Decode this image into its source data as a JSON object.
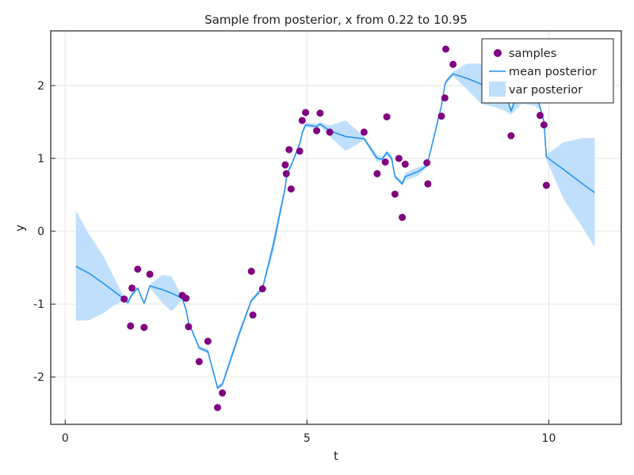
{
  "chart_data": {
    "type": "scatter",
    "title": "Sample from posterior, x from 0.22 to 10.95",
    "xlabel": "t",
    "ylabel": "y",
    "xlim": [
      -0.3,
      11.5
    ],
    "ylim": [
      -2.65,
      2.75
    ],
    "xticks": [
      0,
      5,
      10
    ],
    "xtick_labels": [
      "0",
      "5",
      "10"
    ],
    "yticks": [
      -2,
      -1,
      0,
      1,
      2
    ],
    "ytick_labels": [
      "-2",
      "-1",
      "0",
      "1",
      "2"
    ],
    "grid": true,
    "legend_position": "top-right",
    "series": [
      {
        "name": "samples",
        "kind": "scatter",
        "color": "#800080",
        "x": [
          1.22,
          1.35,
          1.38,
          1.5,
          1.63,
          1.75,
          2.42,
          2.5,
          2.55,
          2.77,
          2.95,
          3.15,
          3.25,
          3.85,
          3.88,
          4.08,
          4.55,
          4.57,
          4.63,
          4.67,
          4.85,
          4.9,
          4.97,
          5.2,
          5.27,
          5.47,
          6.18,
          6.45,
          6.62,
          6.65,
          6.82,
          6.9,
          6.97,
          7.03,
          7.48,
          7.5,
          7.78,
          7.85,
          7.87,
          8.02,
          9.22,
          9.82,
          9.9,
          9.95
        ],
        "y": [
          -0.93,
          -1.3,
          -0.78,
          -0.52,
          -1.32,
          -0.59,
          -0.88,
          -0.92,
          -1.31,
          -1.79,
          -1.51,
          -2.42,
          -2.22,
          -0.55,
          -1.15,
          -0.79,
          0.91,
          0.79,
          1.12,
          0.58,
          1.1,
          1.52,
          1.63,
          1.38,
          1.62,
          1.36,
          1.36,
          0.79,
          0.95,
          1.57,
          0.51,
          1.0,
          0.19,
          0.92,
          0.94,
          0.65,
          1.58,
          1.83,
          2.5,
          2.29,
          1.31,
          1.59,
          1.46,
          0.63
        ]
      },
      {
        "name": "mean posterior",
        "kind": "line",
        "color": "#1f8ef1",
        "x": [
          0.22,
          0.5,
          0.8,
          1.0,
          1.22,
          1.3,
          1.35,
          1.38,
          1.5,
          1.63,
          1.75,
          2.0,
          2.2,
          2.42,
          2.5,
          2.55,
          2.77,
          2.95,
          3.05,
          3.15,
          3.25,
          3.4,
          3.6,
          3.85,
          3.88,
          4.08,
          4.3,
          4.55,
          4.57,
          4.63,
          4.67,
          4.85,
          4.9,
          4.97,
          5.2,
          5.27,
          5.47,
          5.8,
          6.18,
          6.45,
          6.55,
          6.62,
          6.65,
          6.75,
          6.82,
          6.9,
          6.97,
          7.03,
          7.3,
          7.48,
          7.5,
          7.78,
          7.85,
          7.87,
          8.02,
          8.3,
          8.6,
          8.9,
          9.1,
          9.22,
          9.45,
          9.7,
          9.82,
          9.9,
          9.95,
          10.3,
          10.7,
          10.95
        ],
        "y": [
          -0.48,
          -0.58,
          -0.72,
          -0.82,
          -0.93,
          -0.98,
          -0.9,
          -0.87,
          -0.78,
          -0.99,
          -0.75,
          -0.8,
          -0.85,
          -0.92,
          -1.08,
          -1.25,
          -1.6,
          -1.65,
          -1.9,
          -2.15,
          -2.1,
          -1.8,
          -1.4,
          -0.95,
          -0.93,
          -0.78,
          -0.2,
          0.6,
          0.72,
          0.85,
          0.9,
          1.2,
          1.35,
          1.46,
          1.44,
          1.47,
          1.38,
          1.3,
          1.27,
          1.0,
          0.99,
          1.05,
          1.08,
          1.0,
          0.75,
          0.7,
          0.65,
          0.75,
          0.82,
          0.9,
          0.95,
          1.72,
          2.0,
          2.05,
          2.16,
          2.1,
          2.02,
          2.0,
          1.9,
          1.65,
          2.05,
          2.0,
          1.7,
          1.5,
          1.02,
          0.85,
          0.65,
          0.53
        ]
      },
      {
        "name": "var posterior",
        "kind": "band",
        "color": "#bfdffd",
        "x": [
          0.22,
          0.5,
          0.8,
          1.0,
          1.22,
          1.3,
          1.35,
          1.38,
          1.5,
          1.63,
          1.75,
          2.0,
          2.2,
          2.42,
          2.5,
          2.55,
          2.77,
          2.95,
          3.05,
          3.15,
          3.25,
          3.4,
          3.6,
          3.85,
          3.88,
          4.08,
          4.3,
          4.55,
          4.57,
          4.63,
          4.67,
          4.85,
          4.9,
          4.97,
          5.2,
          5.27,
          5.47,
          5.8,
          6.18,
          6.45,
          6.55,
          6.62,
          6.65,
          6.75,
          6.82,
          6.9,
          6.97,
          7.03,
          7.3,
          7.48,
          7.5,
          7.78,
          7.85,
          7.87,
          8.02,
          8.3,
          8.6,
          8.9,
          9.1,
          9.22,
          9.45,
          9.7,
          9.82,
          9.9,
          9.95,
          10.3,
          10.7,
          10.95
        ],
        "lower": [
          -1.23,
          -1.22,
          -1.12,
          -1.02,
          -0.95,
          -1.02,
          -0.93,
          -0.9,
          -0.8,
          -1.01,
          -0.77,
          -0.98,
          -1.1,
          -0.94,
          -1.1,
          -1.27,
          -1.63,
          -1.68,
          -1.93,
          -2.18,
          -2.13,
          -1.85,
          -1.45,
          -0.98,
          -0.96,
          -0.81,
          -0.3,
          0.55,
          0.69,
          0.82,
          0.87,
          1.17,
          1.32,
          1.43,
          1.4,
          1.44,
          1.3,
          1.1,
          1.25,
          0.95,
          0.96,
          1.02,
          1.05,
          0.95,
          0.72,
          0.67,
          0.62,
          0.7,
          0.76,
          0.88,
          0.92,
          1.69,
          1.97,
          2.02,
          2.13,
          1.95,
          1.75,
          1.7,
          1.65,
          1.6,
          1.75,
          1.72,
          1.67,
          1.47,
          0.99,
          0.45,
          0.05,
          -0.22
        ],
        "upper": [
          0.28,
          -0.05,
          -0.35,
          -0.62,
          -0.91,
          -0.94,
          -0.87,
          -0.84,
          -0.76,
          -0.97,
          -0.73,
          -0.6,
          -0.62,
          -0.9,
          -1.06,
          -1.23,
          -1.57,
          -1.62,
          -1.87,
          -2.12,
          -2.07,
          -1.75,
          -1.35,
          -0.92,
          -0.9,
          -0.75,
          -0.1,
          0.65,
          0.75,
          0.88,
          0.93,
          1.23,
          1.38,
          1.49,
          1.48,
          1.5,
          1.45,
          1.52,
          1.3,
          1.05,
          1.02,
          1.08,
          1.11,
          1.05,
          0.78,
          0.73,
          0.68,
          0.8,
          0.88,
          0.92,
          0.98,
          1.75,
          2.03,
          2.08,
          2.19,
          2.3,
          2.3,
          2.25,
          2.15,
          1.7,
          2.35,
          2.3,
          1.73,
          1.53,
          1.05,
          1.22,
          1.28,
          1.28
        ]
      }
    ]
  }
}
